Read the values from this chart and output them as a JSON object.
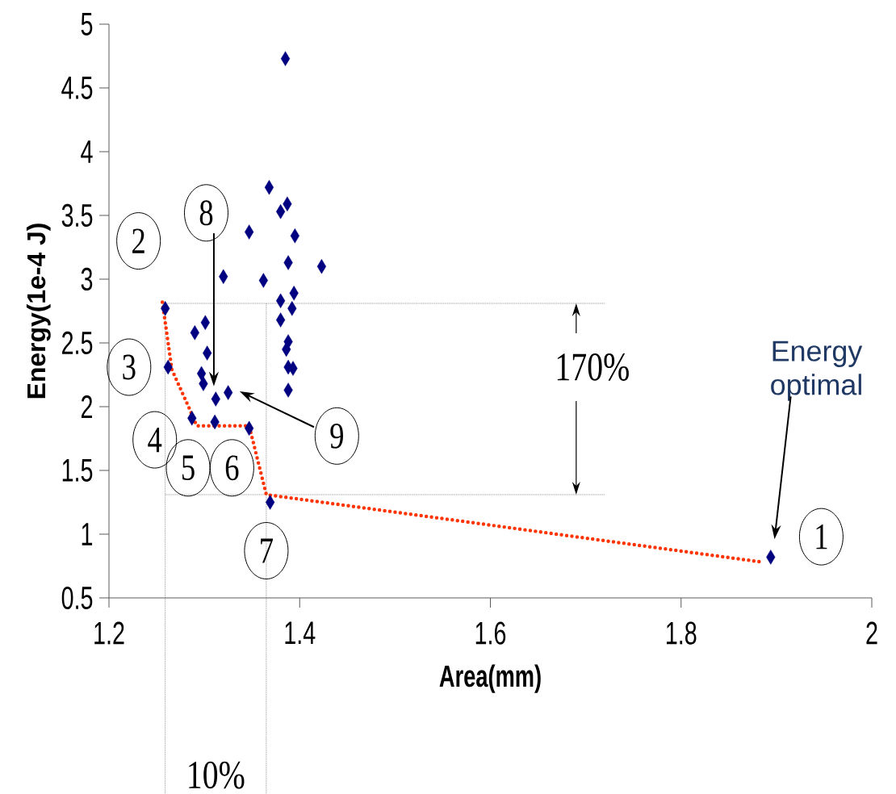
{
  "chart_data": {
    "type": "scatter",
    "xlabel": "Area(mm)",
    "ylabel": "Energy(1e-4 J)",
    "xlim": [
      1.2,
      2
    ],
    "ylim": [
      0.5,
      5
    ],
    "xticks": [
      1.2,
      1.4,
      1.6,
      1.8,
      2
    ],
    "yticks": [
      0.5,
      1,
      1.5,
      2,
      2.5,
      3,
      3.5,
      4,
      4.5,
      5
    ],
    "marker": "diamond",
    "series": [
      {
        "color": "#000080",
        "x": [
          1.259,
          1.262,
          1.287,
          1.311,
          1.347,
          1.369,
          1.894,
          1.32,
          1.347,
          1.362,
          1.368,
          1.38,
          1.387,
          1.395,
          1.388,
          1.423,
          1.394,
          1.38,
          1.392,
          1.38,
          1.388,
          1.386,
          1.388,
          1.393,
          1.388,
          1.301,
          1.29,
          1.303,
          1.297,
          1.299,
          1.312,
          1.325,
          1.385
        ],
        "values": [
          2.77,
          2.31,
          1.91,
          1.88,
          1.83,
          1.25,
          0.82,
          3.02,
          3.37,
          2.99,
          3.72,
          3.53,
          3.59,
          3.34,
          3.13,
          3.1,
          2.89,
          2.83,
          2.77,
          2.68,
          2.51,
          2.45,
          2.31,
          2.3,
          2.13,
          2.66,
          2.58,
          2.42,
          2.26,
          2.18,
          2.06,
          2.11,
          4.73
        ]
      },
      {
        "type": "line",
        "color": "#ff3300",
        "line_style": "dotted",
        "marker": "none",
        "x": [
          1.256,
          1.266,
          1.284,
          1.292,
          1.347,
          1.365,
          1.886
        ],
        "values": [
          2.82,
          2.29,
          1.99,
          1.85,
          1.85,
          1.31,
          0.78
        ]
      }
    ],
    "ref_lines": [
      {
        "axis": "y",
        "value": 2.81
      },
      {
        "axis": "y",
        "value": 1.31
      },
      {
        "axis": "x",
        "value": 1.259
      },
      {
        "axis": "x",
        "value": 1.365
      }
    ],
    "annotations": [
      "1",
      "2",
      "3",
      "4",
      "5",
      "6",
      "7",
      "8",
      "9",
      "Energy optimal",
      {
        "text": "170%",
        "x": 1.69,
        "y": 2.81
      },
      "10%"
    ]
  }
}
